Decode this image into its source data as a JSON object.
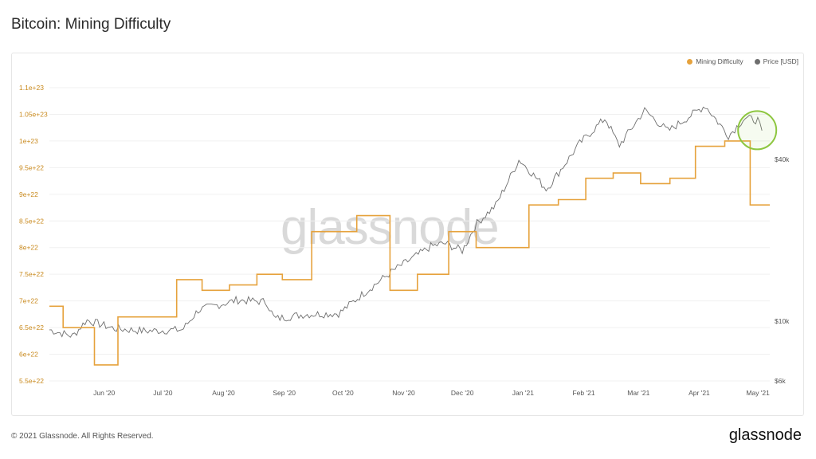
{
  "header": {
    "title": "Bitcoin: Mining Difficulty"
  },
  "watermark": "glassnode",
  "footer": {
    "copyright": "© 2021 Glassnode. All Rights Reserved.",
    "brand": "glassnode"
  },
  "colors": {
    "difficulty": "#e6a23c",
    "price": "#6e6e6e",
    "left_axis": "#c98a1e",
    "right_axis": "#555555",
    "highlight": "#8dc63f"
  },
  "chart_data": {
    "type": "line",
    "title": "Bitcoin: Mining Difficulty",
    "legend": {
      "position": "top-right",
      "entries": [
        "Mining Difficulty",
        "Price [USD]"
      ]
    },
    "x_ticks": [
      "Jun '20",
      "Jul '20",
      "Aug '20",
      "Sep '20",
      "Oct '20",
      "Nov '20",
      "Dec '20",
      "Jan '21",
      "Feb '21",
      "Mar '21",
      "Apr '21",
      "May '21"
    ],
    "x_range": [
      "2020-05-13",
      "2021-05-16"
    ],
    "left_axis": {
      "ticks": [
        "1.1e+23",
        "1.05e+23",
        "1e+23",
        "9.5e+22",
        "9e+22",
        "8.5e+22",
        "8e+22",
        "7.5e+22",
        "7e+22",
        "6.5e+22",
        "6e+22",
        "5.5e+22"
      ],
      "tick_values": [
        1.1e+23,
        1.05e+23,
        1e+23,
        9.5e+22,
        9e+22,
        8.5e+22,
        8e+22,
        7.5e+22,
        7e+22,
        6.5e+22,
        6e+22,
        5.5e+22
      ],
      "range": [
        5.5e+22,
        1.1e+23
      ]
    },
    "right_axis": {
      "ticks": [
        "$40k",
        "$10k",
        "$6k"
      ],
      "tick_values": [
        40000,
        10000,
        6000
      ],
      "scale": "log"
    },
    "series": [
      {
        "name": "Mining Difficulty",
        "step": true,
        "points": [
          [
            "2020-05-13",
            6.9e+22
          ],
          [
            "2020-05-20",
            6.5e+22
          ],
          [
            "2020-06-05",
            5.8e+22
          ],
          [
            "2020-06-17",
            6.7e+22
          ],
          [
            "2020-07-17",
            7.4e+22
          ],
          [
            "2020-07-30",
            7.2e+22
          ],
          [
            "2020-08-13",
            7.3e+22
          ],
          [
            "2020-08-27",
            7.5e+22
          ],
          [
            "2020-09-09",
            7.4e+22
          ],
          [
            "2020-09-24",
            8.3e+22
          ],
          [
            "2020-10-17",
            8.6e+22
          ],
          [
            "2020-11-03",
            7.2e+22
          ],
          [
            "2020-11-17",
            7.5e+22
          ],
          [
            "2020-12-03",
            8.3e+22
          ],
          [
            "2020-12-17",
            8e+22
          ],
          [
            "2021-01-02",
            8e+22
          ],
          [
            "2021-01-13",
            8.8e+22
          ],
          [
            "2021-01-28",
            8.9e+22
          ],
          [
            "2021-02-11",
            9.3e+22
          ],
          [
            "2021-02-25",
            9.4e+22
          ],
          [
            "2021-03-11",
            9.2e+22
          ],
          [
            "2021-03-26",
            9.3e+22
          ],
          [
            "2021-04-08",
            9.9e+22
          ],
          [
            "2021-04-23",
            1e+23
          ],
          [
            "2021-05-06",
            8.8e+22
          ],
          [
            "2021-05-16",
            8.8e+22
          ]
        ]
      },
      {
        "name": "Price [USD]",
        "points": [
          [
            "2020-05-13",
            9300
          ],
          [
            "2020-05-25",
            8800
          ],
          [
            "2020-06-01",
            10100
          ],
          [
            "2020-06-15",
            9400
          ],
          [
            "2020-07-01",
            9200
          ],
          [
            "2020-07-20",
            9300
          ],
          [
            "2020-07-28",
            11000
          ],
          [
            "2020-08-17",
            12000
          ],
          [
            "2020-09-01",
            11800
          ],
          [
            "2020-09-05",
            10200
          ],
          [
            "2020-09-20",
            10600
          ],
          [
            "2020-10-08",
            10700
          ],
          [
            "2020-10-21",
            12800
          ],
          [
            "2020-11-05",
            15500
          ],
          [
            "2020-11-24",
            19000
          ],
          [
            "2020-12-01",
            19500
          ],
          [
            "2020-12-10",
            18300
          ],
          [
            "2020-12-17",
            23000
          ],
          [
            "2020-12-27",
            27000
          ],
          [
            "2021-01-08",
            40000
          ],
          [
            "2021-01-22",
            31000
          ],
          [
            "2021-02-08",
            46000
          ],
          [
            "2021-02-21",
            57000
          ],
          [
            "2021-02-28",
            45000
          ],
          [
            "2021-03-13",
            61000
          ],
          [
            "2021-03-25",
            51000
          ],
          [
            "2021-04-13",
            63500
          ],
          [
            "2021-04-25",
            49000
          ],
          [
            "2021-05-03",
            57000
          ],
          [
            "2021-05-10",
            56000
          ],
          [
            "2021-05-12",
            50000
          ]
        ]
      }
    ]
  }
}
